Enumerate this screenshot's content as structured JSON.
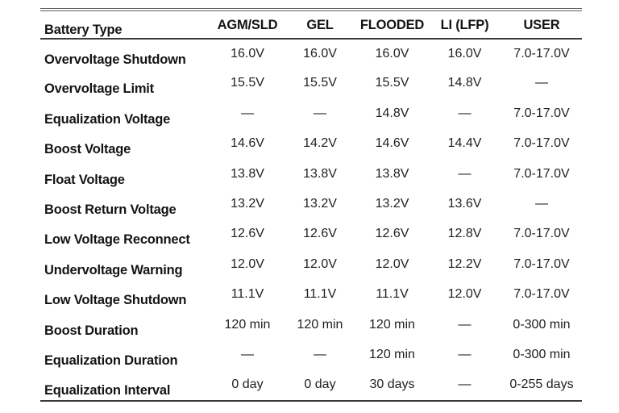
{
  "table": {
    "header": [
      "Battery Type",
      "AGM/SLD",
      "GEL",
      "FLOODED",
      "LI (LFP)",
      "USER"
    ],
    "rows": [
      {
        "label": "Overvoltage Shutdown",
        "values": [
          "16.0V",
          "16.0V",
          "16.0V",
          "16.0V",
          "7.0-17.0V"
        ]
      },
      {
        "label": "Overvoltage Limit",
        "values": [
          "15.5V",
          "15.5V",
          "15.5V",
          "14.8V",
          "—"
        ]
      },
      {
        "label": "Equalization Voltage",
        "values": [
          "—",
          "—",
          "14.8V",
          "—",
          "7.0-17.0V"
        ]
      },
      {
        "label": "Boost Voltage",
        "values": [
          "14.6V",
          "14.2V",
          "14.6V",
          "14.4V",
          "7.0-17.0V"
        ]
      },
      {
        "label": "Float Voltage",
        "values": [
          "13.8V",
          "13.8V",
          "13.8V",
          "—",
          "7.0-17.0V"
        ]
      },
      {
        "label": "Boost Return Voltage",
        "values": [
          "13.2V",
          "13.2V",
          "13.2V",
          "13.6V",
          "—"
        ]
      },
      {
        "label": "Low Voltage Reconnect",
        "values": [
          "12.6V",
          "12.6V",
          "12.6V",
          "12.8V",
          "7.0-17.0V"
        ]
      },
      {
        "label": "Undervoltage Warning",
        "values": [
          "12.0V",
          "12.0V",
          "12.0V",
          "12.2V",
          "7.0-17.0V"
        ]
      },
      {
        "label": "Low Voltage Shutdown",
        "values": [
          "11.1V",
          "11.1V",
          "11.1V",
          "12.0V",
          "7.0-17.0V"
        ]
      },
      {
        "label": "Boost Duration",
        "values": [
          "120 min",
          "120 min",
          "120 min",
          "—",
          "0-300 min"
        ]
      },
      {
        "label": "Equalization Duration",
        "values": [
          "—",
          "—",
          "120 min",
          "—",
          "0-300 min"
        ]
      },
      {
        "label": "Equalization Interval",
        "values": [
          "0 day",
          "0 day",
          "30 days",
          "—",
          "0-255 days"
        ]
      }
    ],
    "colors": {
      "text": "#1f1f1f",
      "label_text": "#141414",
      "border": "#3a3a3a",
      "border_top": "#5f5f5f",
      "background": "#ffffff"
    }
  }
}
